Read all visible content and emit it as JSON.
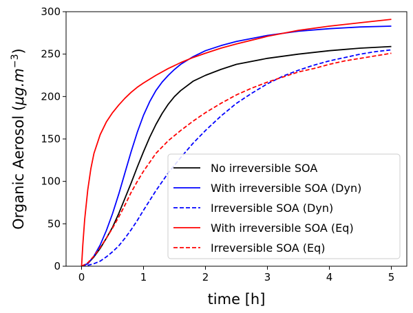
{
  "chart_data": {
    "type": "line",
    "xlabel": "time [h]",
    "ylabel": "Organic Aerosol (μg.m⁻³)",
    "ylabel_parts": {
      "main": "Organic Aerosol (",
      "unit_base": "μg.m",
      "unit_exp": "−3",
      "close": ")"
    },
    "xlim": [
      -0.25,
      5.25
    ],
    "ylim": [
      0,
      300
    ],
    "xticks": [
      0,
      1,
      2,
      3,
      4,
      5
    ],
    "yticks": [
      0,
      50,
      100,
      150,
      200,
      250,
      300
    ],
    "grid": false,
    "legend_position": "lower-right",
    "series": [
      {
        "name": "No irreversible SOA",
        "color": "#000000",
        "style": "solid",
        "points": [
          [
            0.0,
            0
          ],
          [
            0.1,
            3
          ],
          [
            0.2,
            11
          ],
          [
            0.3,
            21
          ],
          [
            0.4,
            33
          ],
          [
            0.5,
            46
          ],
          [
            0.6,
            62
          ],
          [
            0.7,
            80
          ],
          [
            0.8,
            98
          ],
          [
            0.9,
            117
          ],
          [
            1.0,
            135
          ],
          [
            1.1,
            152
          ],
          [
            1.2,
            167
          ],
          [
            1.3,
            180
          ],
          [
            1.4,
            191
          ],
          [
            1.5,
            200
          ],
          [
            1.6,
            207
          ],
          [
            1.8,
            218
          ],
          [
            2.0,
            225
          ],
          [
            2.25,
            232
          ],
          [
            2.5,
            238
          ],
          [
            3.0,
            245
          ],
          [
            3.5,
            250
          ],
          [
            4.0,
            254
          ],
          [
            4.5,
            257
          ],
          [
            5.0,
            259
          ]
        ]
      },
      {
        "name": "With irreversible SOA (Dyn)",
        "color": "#0000ff",
        "style": "solid",
        "points": [
          [
            0.0,
            0
          ],
          [
            0.1,
            3
          ],
          [
            0.2,
            12
          ],
          [
            0.3,
            25
          ],
          [
            0.4,
            42
          ],
          [
            0.5,
            62
          ],
          [
            0.6,
            85
          ],
          [
            0.7,
            110
          ],
          [
            0.8,
            135
          ],
          [
            0.9,
            158
          ],
          [
            1.0,
            178
          ],
          [
            1.1,
            194
          ],
          [
            1.2,
            207
          ],
          [
            1.3,
            217
          ],
          [
            1.4,
            225
          ],
          [
            1.5,
            232
          ],
          [
            1.6,
            238
          ],
          [
            1.8,
            247
          ],
          [
            2.0,
            254
          ],
          [
            2.25,
            260
          ],
          [
            2.5,
            265
          ],
          [
            3.0,
            272
          ],
          [
            3.5,
            277
          ],
          [
            4.0,
            280
          ],
          [
            4.5,
            282
          ],
          [
            5.0,
            283
          ]
        ]
      },
      {
        "name": "Irreversible SOA (Dyn)",
        "color": "#0000ff",
        "style": "dashed",
        "points": [
          [
            0.0,
            0
          ],
          [
            0.1,
            1
          ],
          [
            0.2,
            3
          ],
          [
            0.3,
            6
          ],
          [
            0.4,
            11
          ],
          [
            0.5,
            17
          ],
          [
            0.6,
            24
          ],
          [
            0.7,
            33
          ],
          [
            0.8,
            43
          ],
          [
            0.9,
            54
          ],
          [
            1.0,
            66
          ],
          [
            1.2,
            89
          ],
          [
            1.4,
            110
          ],
          [
            1.6,
            128
          ],
          [
            1.8,
            145
          ],
          [
            2.0,
            160
          ],
          [
            2.25,
            177
          ],
          [
            2.5,
            192
          ],
          [
            2.75,
            204
          ],
          [
            3.0,
            215
          ],
          [
            3.25,
            224
          ],
          [
            3.5,
            231
          ],
          [
            3.75,
            237
          ],
          [
            4.0,
            242
          ],
          [
            4.25,
            246
          ],
          [
            4.5,
            250
          ],
          [
            4.75,
            253
          ],
          [
            5.0,
            255
          ]
        ]
      },
      {
        "name": "With irreversible SOA (Eq)",
        "color": "#ff0000",
        "style": "solid",
        "points": [
          [
            0.0,
            0
          ],
          [
            0.02,
            25
          ],
          [
            0.05,
            55
          ],
          [
            0.1,
            90
          ],
          [
            0.15,
            115
          ],
          [
            0.2,
            133
          ],
          [
            0.3,
            155
          ],
          [
            0.4,
            170
          ],
          [
            0.5,
            181
          ],
          [
            0.6,
            190
          ],
          [
            0.7,
            198
          ],
          [
            0.8,
            205
          ],
          [
            0.9,
            211
          ],
          [
            1.0,
            216
          ],
          [
            1.2,
            225
          ],
          [
            1.4,
            233
          ],
          [
            1.6,
            240
          ],
          [
            1.8,
            246
          ],
          [
            2.0,
            251
          ],
          [
            2.25,
            257
          ],
          [
            2.5,
            262
          ],
          [
            3.0,
            271
          ],
          [
            3.5,
            278
          ],
          [
            4.0,
            283
          ],
          [
            4.5,
            287
          ],
          [
            5.0,
            291
          ]
        ]
      },
      {
        "name": "Irreversible SOA (Eq)",
        "color": "#ff0000",
        "style": "dashed",
        "points": [
          [
            0.0,
            0
          ],
          [
            0.1,
            4
          ],
          [
            0.2,
            12
          ],
          [
            0.3,
            22
          ],
          [
            0.4,
            33
          ],
          [
            0.5,
            45
          ],
          [
            0.6,
            58
          ],
          [
            0.7,
            72
          ],
          [
            0.8,
            87
          ],
          [
            0.9,
            100
          ],
          [
            1.0,
            112
          ],
          [
            1.2,
            133
          ],
          [
            1.4,
            148
          ],
          [
            1.6,
            160
          ],
          [
            1.8,
            171
          ],
          [
            2.0,
            181
          ],
          [
            2.25,
            192
          ],
          [
            2.5,
            202
          ],
          [
            2.75,
            210
          ],
          [
            3.0,
            217
          ],
          [
            3.25,
            223
          ],
          [
            3.5,
            229
          ],
          [
            3.75,
            233
          ],
          [
            4.0,
            238
          ],
          [
            4.25,
            242
          ],
          [
            4.5,
            245
          ],
          [
            4.75,
            248
          ],
          [
            5.0,
            251
          ]
        ]
      }
    ]
  }
}
